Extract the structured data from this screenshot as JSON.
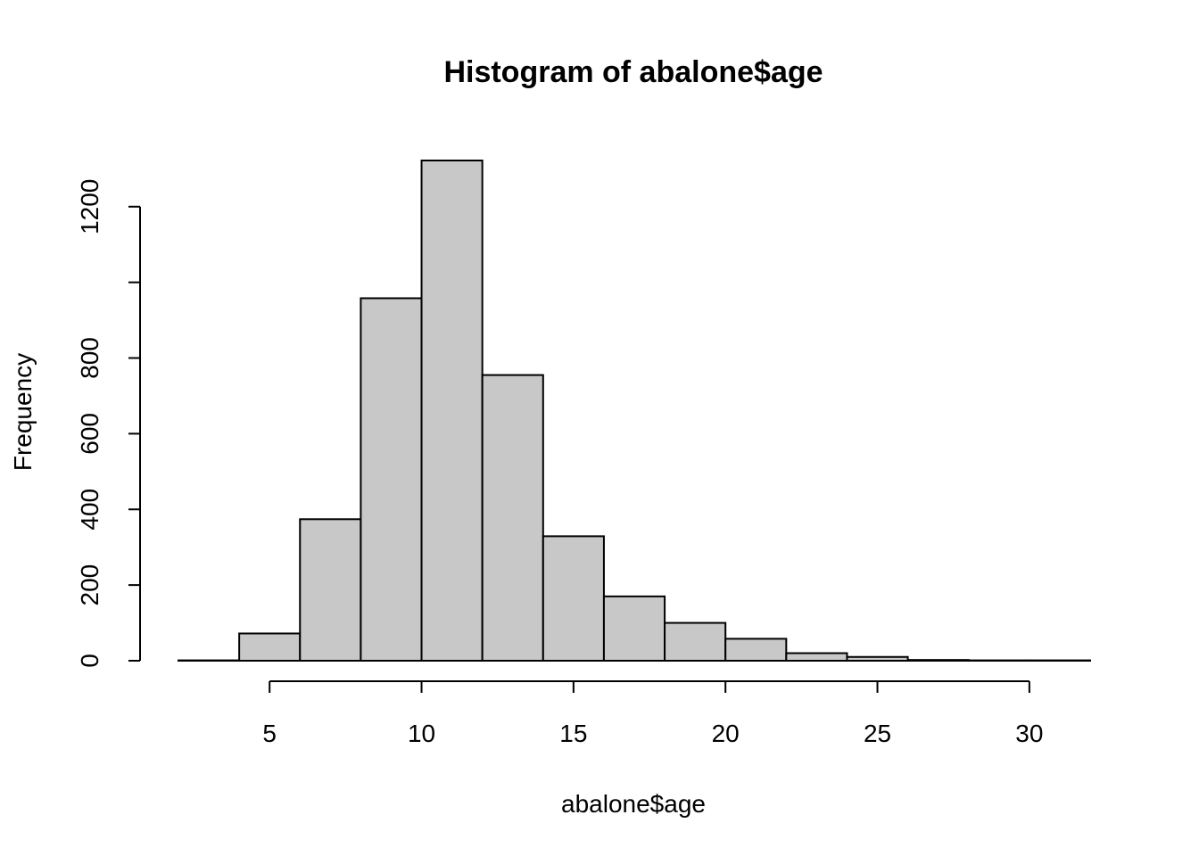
{
  "chart_data": {
    "type": "bar",
    "subtype": "histogram",
    "title": "Histogram of abalone$age",
    "xlabel": "abalone$age",
    "ylabel": "Frequency",
    "bins": [
      {
        "start": 2,
        "end": 4,
        "count": 1
      },
      {
        "start": 4,
        "end": 6,
        "count": 72
      },
      {
        "start": 6,
        "end": 8,
        "count": 374
      },
      {
        "start": 8,
        "end": 10,
        "count": 958
      },
      {
        "start": 10,
        "end": 12,
        "count": 1322
      },
      {
        "start": 12,
        "end": 14,
        "count": 755
      },
      {
        "start": 14,
        "end": 16,
        "count": 329
      },
      {
        "start": 16,
        "end": 18,
        "count": 170
      },
      {
        "start": 18,
        "end": 20,
        "count": 100
      },
      {
        "start": 20,
        "end": 22,
        "count": 58
      },
      {
        "start": 22,
        "end": 24,
        "count": 20
      },
      {
        "start": 24,
        "end": 26,
        "count": 10
      },
      {
        "start": 26,
        "end": 28,
        "count": 2
      },
      {
        "start": 28,
        "end": 30,
        "count": 1
      },
      {
        "start": 30,
        "end": 32,
        "count": 1
      }
    ],
    "xlim": [
      2,
      32
    ],
    "ylim": [
      0,
      1322
    ],
    "x_ticks": [
      5,
      10,
      15,
      20,
      25,
      30
    ],
    "y_ticks": [
      0,
      200,
      400,
      600,
      800,
      1000,
      1200
    ],
    "y_tick_labels": [
      "0",
      "200",
      "400",
      "600",
      "800",
      "",
      "1200"
    ],
    "grid": false,
    "colors": {
      "bar_fill": "#c8c8c8",
      "bar_stroke": "#000000"
    }
  }
}
